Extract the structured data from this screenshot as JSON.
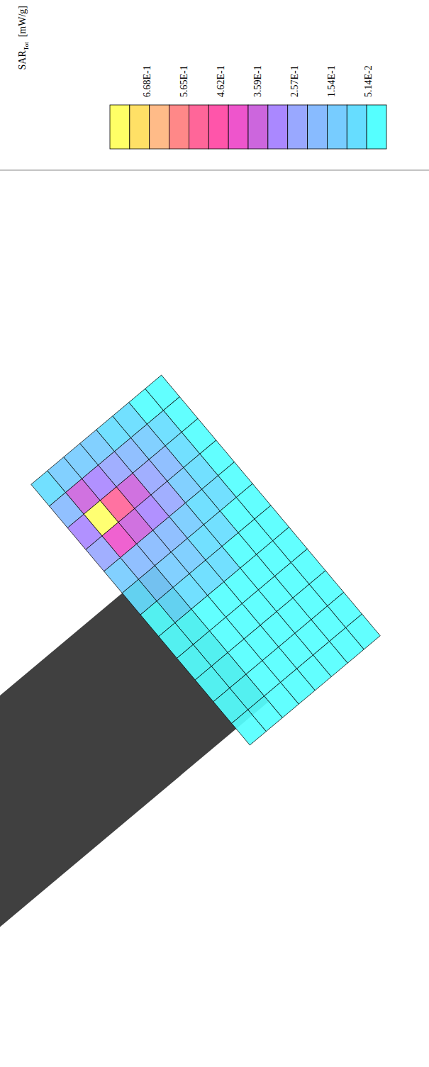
{
  "chart_data": {
    "type": "heatmap",
    "tick_labels": false,
    "cells": [
      [
        0.03,
        0.04,
        0.05,
        0.05,
        0.04,
        0.04,
        0.03,
        0.03,
        0.02,
        0.02,
        0.02,
        0.02
      ],
      [
        0.05,
        0.08,
        0.1,
        0.09,
        0.07,
        0.05,
        0.04,
        0.03,
        0.03,
        0.02,
        0.02,
        0.02
      ],
      [
        0.08,
        0.14,
        0.18,
        0.15,
        0.1,
        0.07,
        0.05,
        0.04,
        0.03,
        0.02,
        0.02,
        0.02
      ],
      [
        0.1,
        0.2,
        0.27,
        0.22,
        0.14,
        0.09,
        0.06,
        0.04,
        0.03,
        0.03,
        0.02,
        0.02
      ],
      [
        0.12,
        0.26,
        0.38,
        0.3,
        0.18,
        0.11,
        0.07,
        0.05,
        0.03,
        0.03,
        0.02,
        0.02
      ],
      [
        0.14,
        0.32,
        0.52,
        0.38,
        0.21,
        0.12,
        0.07,
        0.05,
        0.04,
        0.03,
        0.02,
        0.02
      ],
      [
        0.13,
        0.34,
        0.72,
        0.4,
        0.2,
        0.11,
        0.06,
        0.04,
        0.03,
        0.03,
        0.02,
        0.02
      ],
      [
        0.09,
        0.2,
        0.3,
        0.22,
        0.12,
        0.07,
        0.05,
        0.04,
        0.03,
        0.02,
        0.02,
        0.02
      ]
    ],
    "colorbar": {
      "title": "SAR",
      "title_subscript": "Tot",
      "units": "[mW/g]",
      "range": [
        0.77,
        0
      ],
      "ticks": [
        {
          "value": 0.668,
          "label": "6.68E-1"
        },
        {
          "value": 0.565,
          "label": "5.65E-1"
        },
        {
          "value": 0.462,
          "label": "4.62E-1"
        },
        {
          "value": 0.359,
          "label": "3.59E-1"
        },
        {
          "value": 0.257,
          "label": "2.57E-1"
        },
        {
          "value": 0.154,
          "label": "1.54E-1"
        },
        {
          "value": 0.0514,
          "label": "5.14E-2"
        }
      ],
      "colors": [
        "#ffff66",
        "#ffe066",
        "#ffbb88",
        "#ff8888",
        "#ff6699",
        "#ff55aa",
        "#ee55cc",
        "#cc66dd",
        "#aa88ff",
        "#99a8ff",
        "#88bbff",
        "#77ccff",
        "#66ddff",
        "#55ffff"
      ]
    }
  }
}
